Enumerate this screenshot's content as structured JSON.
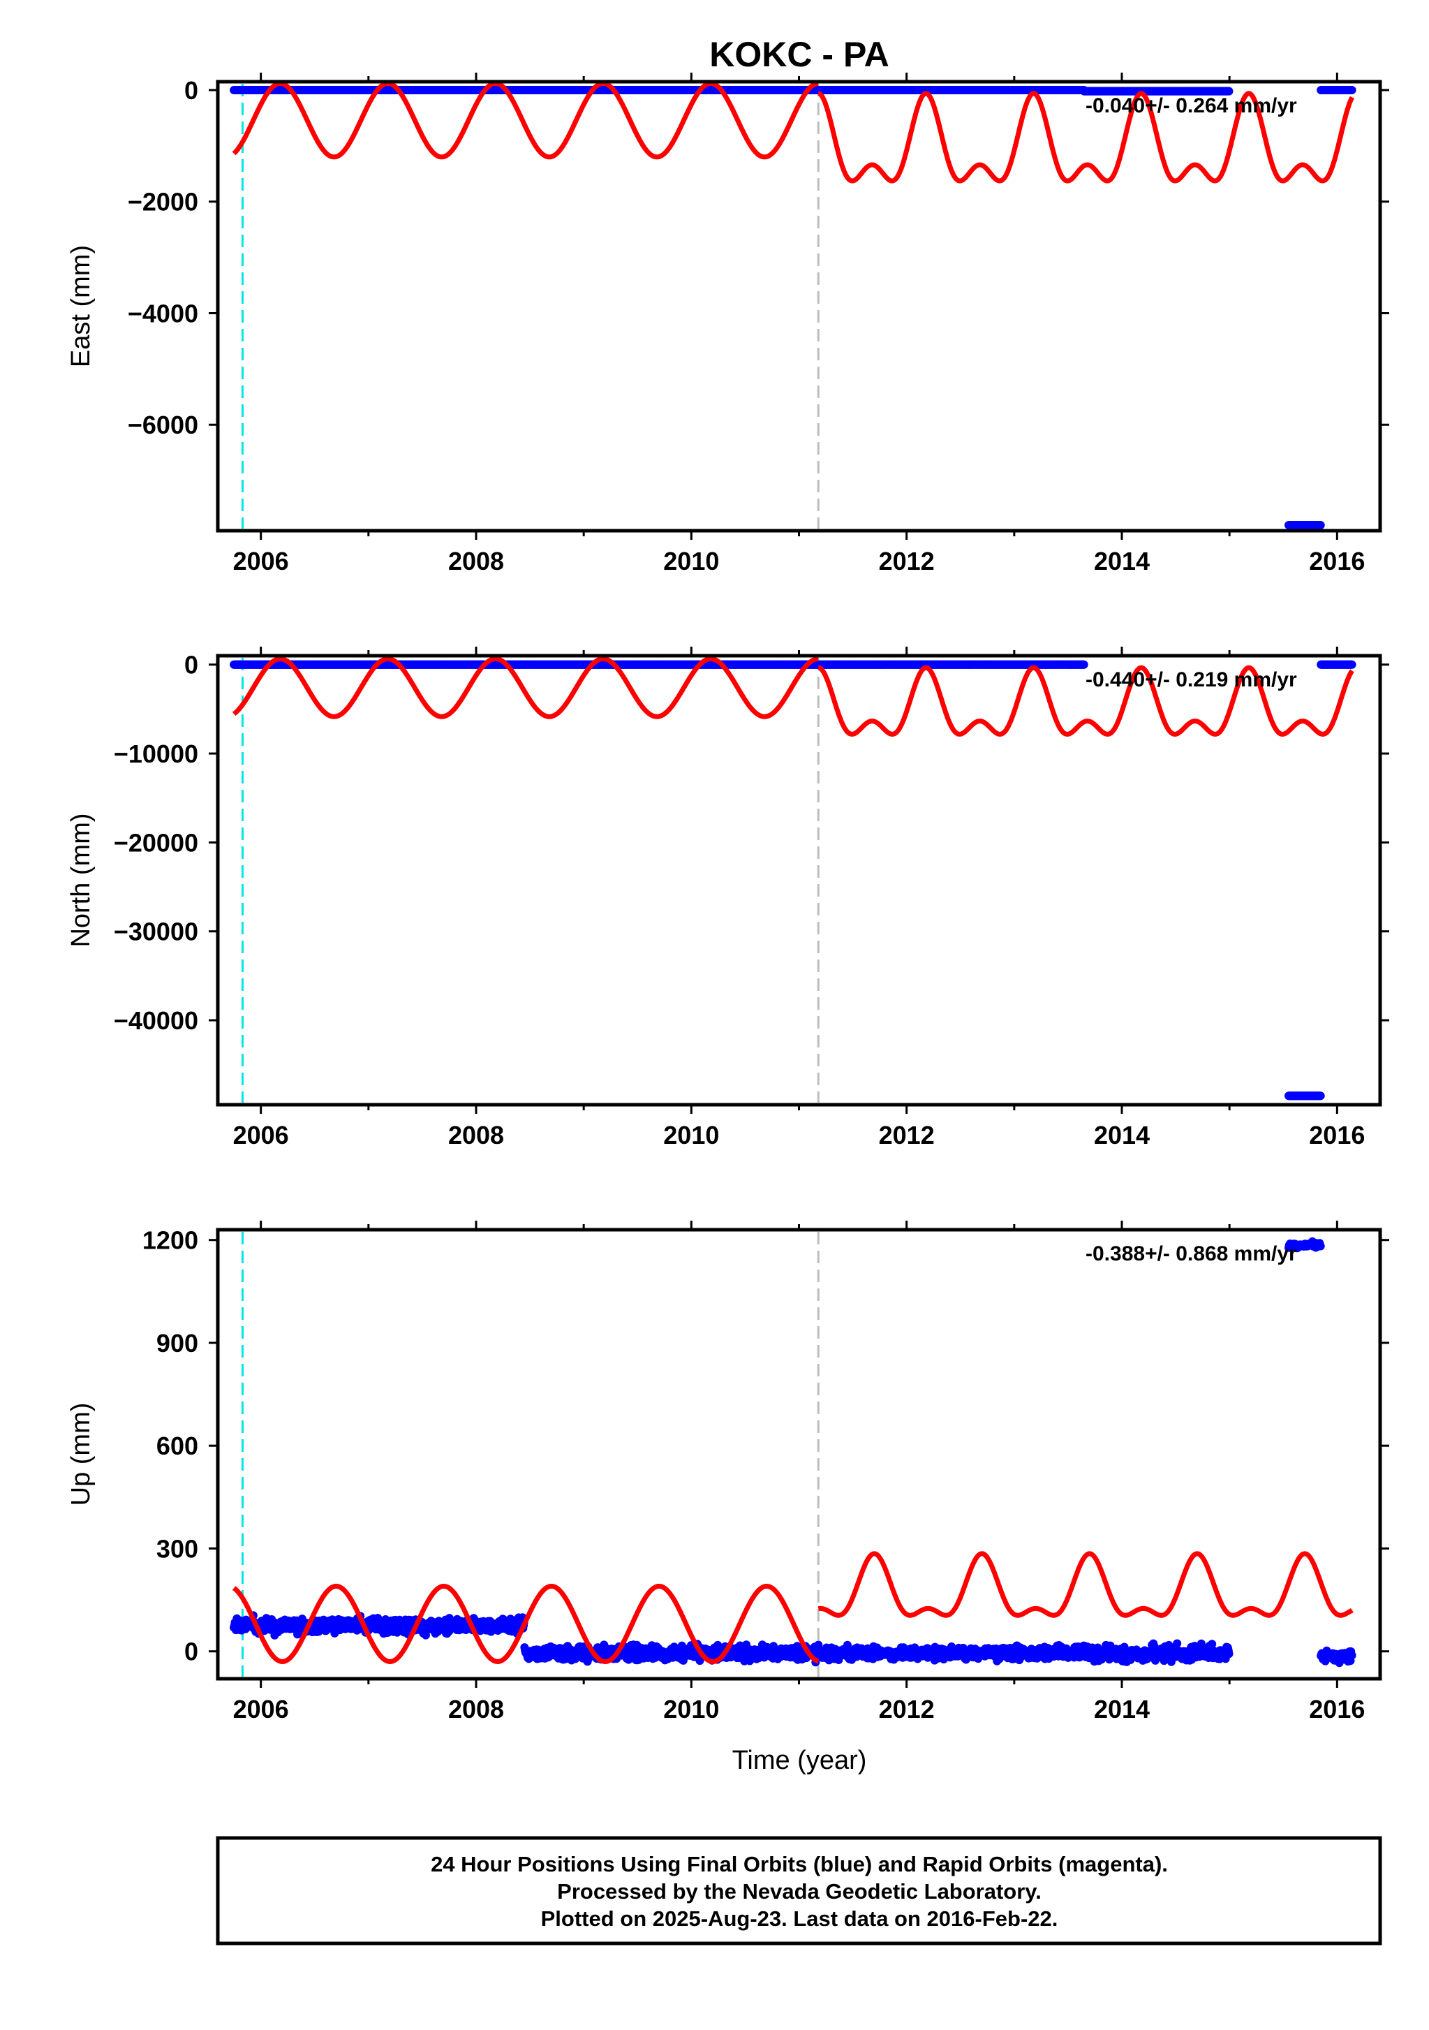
{
  "title": "KOKC - PA",
  "colors": {
    "final_points": "#0000ff",
    "model_curve": "#ff0000",
    "antenna_change_line": "#00e5e5",
    "equipment_change_line": "#bdbdbd",
    "frame": "#000000"
  },
  "x_axis": {
    "label": "Time (year)",
    "range": [
      2005.6,
      2016.4
    ],
    "tick_labels": [
      "2006",
      "2008",
      "2010",
      "2012",
      "2014",
      "2016"
    ],
    "major_ticks": [
      2006,
      2008,
      2010,
      2012,
      2014,
      2016
    ],
    "minor_ticks": [
      2007,
      2009,
      2011,
      2013,
      2015
    ]
  },
  "footer": {
    "line1": "24 Hour Positions Using Final Orbits (blue) and Rapid Orbits (magenta).",
    "line2": "Processed by the Nevada Geodetic Laboratory.",
    "line3": "Plotted on 2025-Aug-23. Last data on 2016-Feb-22."
  },
  "chart_data": [
    {
      "type": "scatter",
      "component": "east",
      "ylabel": "East (mm)",
      "ylim": [
        -7900,
        150
      ],
      "yticks": [
        0,
        -2000,
        -4000,
        -6000
      ],
      "ytick_labels": [
        "0",
        "−2000",
        "−4000",
        "−6000"
      ],
      "rate_text": "-0.040+/- 0.264 mm/yr",
      "vertical_lines": {
        "antenna_change": 2005.83,
        "equipment_change": 2011.18
      },
      "points": [
        {
          "x_start": 2005.75,
          "x_end": 2013.65,
          "y": 0
        },
        {
          "x_start": 2013.65,
          "x_end": 2015.0,
          "y": -20
        },
        {
          "x_start": 2015.55,
          "x_end": 2015.85,
          "y": -7800
        },
        {
          "x_start": 2015.85,
          "x_end": 2016.14,
          "y": 0
        }
      ],
      "model": {
        "segments": [
          {
            "x_start": 2005.75,
            "x_end": 2011.18,
            "offset": -540,
            "annual_amp": 660,
            "semiannual_amp": 0
          },
          {
            "x_start": 2011.18,
            "x_end": 2016.14,
            "offset": -1100,
            "annual_amp": 640,
            "semiannual_amp": 400
          }
        ],
        "annual_peak_phase": 0.18,
        "semiannual_peak_phase": 0.18
      }
    },
    {
      "type": "scatter",
      "component": "north",
      "ylabel": "North (mm)",
      "ylim": [
        -49500,
        1000
      ],
      "yticks": [
        0,
        -10000,
        -20000,
        -30000,
        -40000
      ],
      "ytick_labels": [
        "0",
        "−10000",
        "−20000",
        "−30000",
        "−40000"
      ],
      "rate_text": "-0.440+/- 0.219 mm/yr",
      "vertical_lines": {
        "antenna_change": 2005.83,
        "equipment_change": 2011.18
      },
      "points": [
        {
          "x_start": 2005.75,
          "x_end": 2013.65,
          "y": 0
        },
        {
          "x_start": 2015.55,
          "x_end": 2015.85,
          "y": -48500
        },
        {
          "x_start": 2015.85,
          "x_end": 2016.14,
          "y": 0
        }
      ],
      "model": {
        "segments": [
          {
            "x_start": 2005.75,
            "x_end": 2011.18,
            "offset": -2600,
            "annual_amp": 3250,
            "semiannual_amp": 0
          },
          {
            "x_start": 2011.18,
            "x_end": 2016.14,
            "offset": -5300,
            "annual_amp": 3000,
            "semiannual_amp": 1950
          }
        ],
        "annual_peak_phase": 0.18,
        "semiannual_peak_phase": 0.18
      }
    },
    {
      "type": "scatter",
      "component": "up",
      "ylabel": "Up (mm)",
      "ylim": [
        -80,
        1230
      ],
      "yticks": [
        0,
        300,
        600,
        900,
        1200
      ],
      "ytick_labels": [
        "0",
        "300",
        "600",
        "900",
        "1200"
      ],
      "rate_text": "-0.388+/- 0.868 mm/yr",
      "vertical_lines": {
        "antenna_change": 2005.83,
        "equipment_change": 2011.18
      },
      "points": [
        {
          "x_start": 2005.75,
          "x_end": 2008.45,
          "y": 75,
          "scatter": 16
        },
        {
          "x_start": 2008.45,
          "x_end": 2011.18,
          "y": -5,
          "scatter": 16
        },
        {
          "x_start": 2011.18,
          "x_end": 2013.65,
          "y": -5,
          "scatter": 14
        },
        {
          "x_start": 2013.65,
          "x_end": 2015.0,
          "y": -5,
          "scatter": 18
        },
        {
          "x_start": 2015.55,
          "x_end": 2015.85,
          "y": 1185,
          "scatter": 6
        },
        {
          "x_start": 2015.85,
          "x_end": 2016.14,
          "y": -15,
          "scatter": 12
        }
      ],
      "model": {
        "segments": [
          {
            "x_start": 2005.75,
            "x_end": 2011.18,
            "offset": 80,
            "annual_amp": 110,
            "semiannual_amp": 0
          },
          {
            "x_start": 2011.18,
            "x_end": 2016.14,
            "offset": 165,
            "annual_amp": 80,
            "semiannual_amp": 40
          }
        ],
        "annual_peak_phase": 0.7,
        "semiannual_peak_phase": 0.7
      }
    }
  ]
}
